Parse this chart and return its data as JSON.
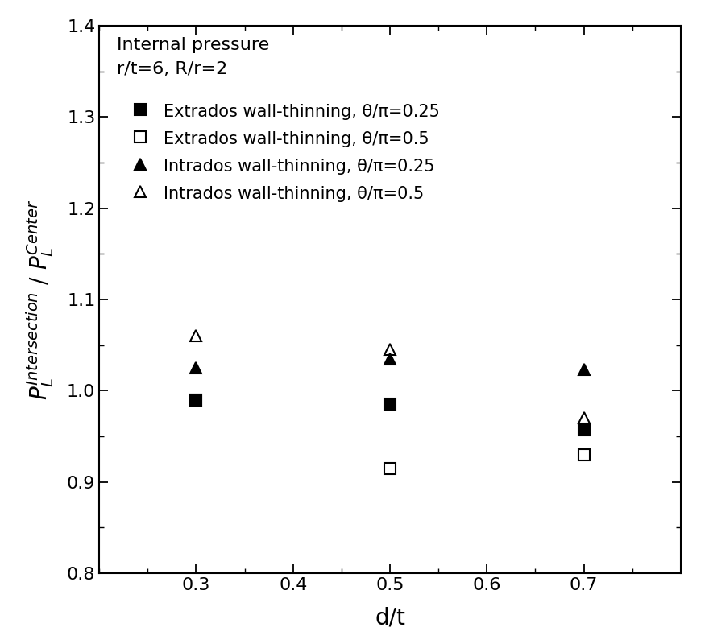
{
  "x_values": [
    0.3,
    0.5,
    0.7
  ],
  "series": [
    {
      "key": "extrados_filled",
      "label": "Extrados wall-thinning, θ/π=0.25",
      "y": [
        0.99,
        0.985,
        0.957
      ],
      "marker": "s",
      "filled": true,
      "color": "black"
    },
    {
      "key": "extrados_open",
      "label": "Extrados wall-thinning, θ/π=0.5",
      "y": [
        0.99,
        0.915,
        0.93
      ],
      "marker": "s",
      "filled": false,
      "color": "black"
    },
    {
      "key": "intrados_filled",
      "label": "Intrados wall-thinning, θ/π=0.25",
      "y": [
        1.025,
        1.035,
        1.023
      ],
      "marker": "^",
      "filled": true,
      "color": "black"
    },
    {
      "key": "intrados_open",
      "label": "Intrados wall-thinning, θ/π=0.5",
      "y": [
        1.06,
        1.045,
        0.97
      ],
      "marker": "^",
      "filled": false,
      "color": "black"
    }
  ],
  "xlim": [
    0.2,
    0.8
  ],
  "ylim": [
    0.8,
    1.4
  ],
  "xticks": [
    0.3,
    0.4,
    0.5,
    0.6,
    0.7
  ],
  "yticks": [
    0.8,
    0.9,
    1.0,
    1.1,
    1.2,
    1.3,
    1.4
  ],
  "xlabel": "d/t",
  "ylabel_parts": [
    "P",
    "Intersection",
    "L",
    "Center"
  ],
  "annotation_line1": "Internal pressure",
  "annotation_line2": "r/t=6, R/r=2",
  "marker_size": 10,
  "background_color": "#ffffff",
  "font_size_ticks": 16,
  "font_size_label": 20,
  "font_size_annot": 16,
  "font_size_legend": 15
}
